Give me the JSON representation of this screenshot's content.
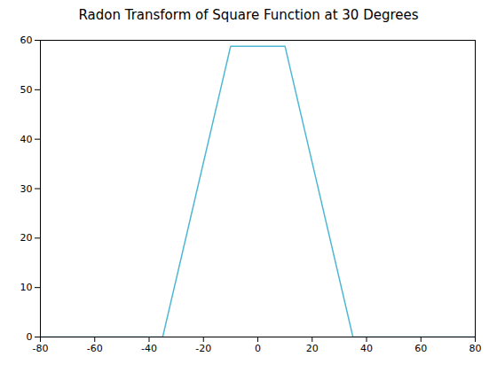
{
  "chart_data": {
    "type": "line",
    "title": "Radon Transform of Square Function at 30 Degrees",
    "x": [
      -80,
      -35,
      -10,
      10,
      35,
      80
    ],
    "values": [
      0,
      0,
      58.8,
      58.8,
      0,
      0
    ],
    "color": "#4db8d4",
    "xlim": [
      -80,
      80
    ],
    "ylim": [
      0,
      60
    ],
    "xticks": [
      -80,
      -60,
      -40,
      -20,
      0,
      20,
      40,
      60,
      80
    ],
    "yticks": [
      0,
      10,
      20,
      30,
      40,
      50,
      60
    ],
    "grid": false
  }
}
